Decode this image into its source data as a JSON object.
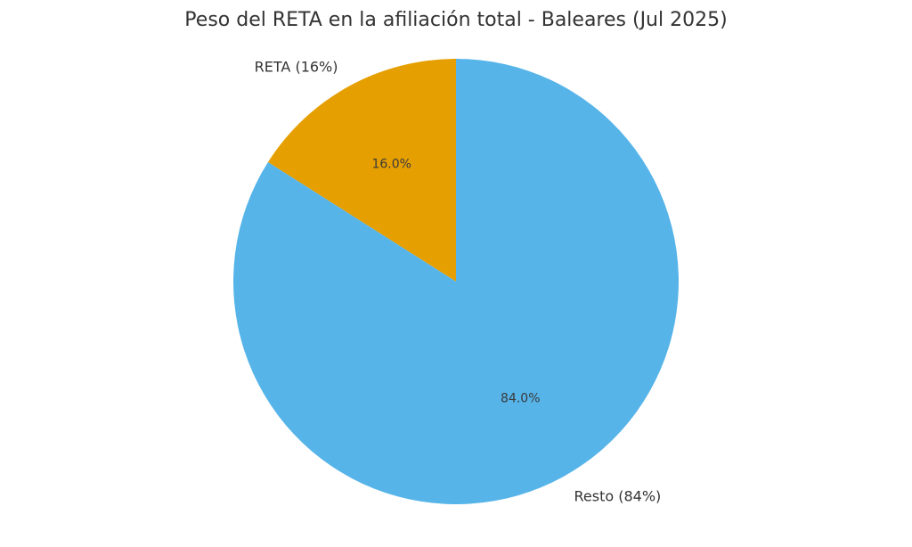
{
  "chart_data": {
    "type": "pie",
    "title": "Peso del RETA en la afiliación total - Baleares (Jul 2025)",
    "slices": [
      {
        "name": "reta",
        "label": "RETA (16%)",
        "value": 16.0,
        "pct_label": "16.0%",
        "color": "#E69F00"
      },
      {
        "name": "resto",
        "label": "Resto (84%)",
        "value": 84.0,
        "pct_label": "84.0%",
        "color": "#56B4E9"
      }
    ],
    "start_angle": 90,
    "direction": "counterclockwise",
    "label_distance": 1.1,
    "pct_distance": 0.6,
    "legend": "none",
    "background_color": "#ffffff",
    "text_color": "#333333"
  }
}
